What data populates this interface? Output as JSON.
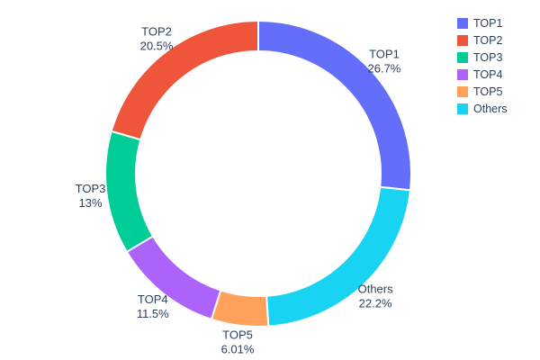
{
  "chart_data": {
    "type": "pie",
    "hole": 0.8,
    "title": "",
    "legend_position": "right",
    "grid": false,
    "slices_clockwise_from_top": [
      {
        "name": "TOP1",
        "value": 26.7,
        "label_pct": "26.7%",
        "color": "#636EFA"
      },
      {
        "name": "Others",
        "value": 22.2,
        "label_pct": "22.2%",
        "color": "#19D3F3"
      },
      {
        "name": "TOP5",
        "value": 6.01,
        "label_pct": "6.01%",
        "color": "#FFA15A"
      },
      {
        "name": "TOP4",
        "value": 11.5,
        "label_pct": "11.5%",
        "color": "#AB63FA"
      },
      {
        "name": "TOP3",
        "value": 13.0,
        "label_pct": "13%",
        "color": "#00CC96"
      },
      {
        "name": "TOP2",
        "value": 20.5,
        "label_pct": "20.5%",
        "color": "#EF553B"
      }
    ],
    "legend_order": [
      "TOP1",
      "TOP2",
      "TOP3",
      "TOP4",
      "TOP5",
      "Others"
    ]
  },
  "colors": {
    "text": "#2a3f5f",
    "background": "#ffffff",
    "slice_border": "#ffffff"
  }
}
